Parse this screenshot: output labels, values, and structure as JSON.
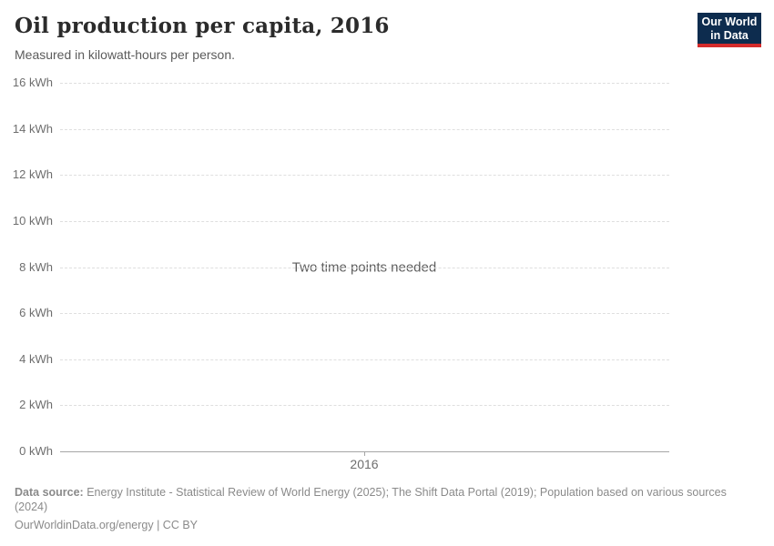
{
  "header": {
    "title": "Oil production per capita, 2016",
    "subtitle": "Measured in kilowatt-hours per person.",
    "logo": {
      "line1": "Our World",
      "line2": "in Data",
      "background_color": "#0d2c4e",
      "stripe_color": "#d42b2b"
    }
  },
  "chart_data": {
    "type": "line",
    "title": "Oil production per capita, 2016",
    "subtitle": "Measured in kilowatt-hours per person.",
    "unit": "kWh",
    "series": [],
    "empty_message": "Two time points needed",
    "ylim": [
      0,
      16
    ],
    "yticks": [
      0,
      2,
      4,
      6,
      8,
      10,
      12,
      14,
      16
    ],
    "ytick_labels": [
      "0 kWh",
      "2 kWh",
      "4 kWh",
      "6 kWh",
      "8 kWh",
      "10 kWh",
      "12 kWh",
      "14 kWh",
      "16 kWh"
    ],
    "xtick_labels": [
      "2016"
    ],
    "grid": "horizontal-dashed",
    "legend": "none"
  },
  "footer": {
    "source_label": "Data source:",
    "source_text": " Energy Institute - Statistical Review of World Energy (2025); The Shift Data Portal (2019); Population based on various sources (2024)",
    "license_line": "OurWorldinData.org/energy | CC BY"
  },
  "colors": {
    "title": "#2b2b2b",
    "subtitle": "#5b5b5b",
    "axis_label": "#6e6e6e",
    "gridline": "#dfdfdf",
    "axis_line": "#a5a5a5",
    "footer_text": "#8a8a8a",
    "logo_navy": "#0d2c4e",
    "logo_red": "#d42b2b"
  }
}
